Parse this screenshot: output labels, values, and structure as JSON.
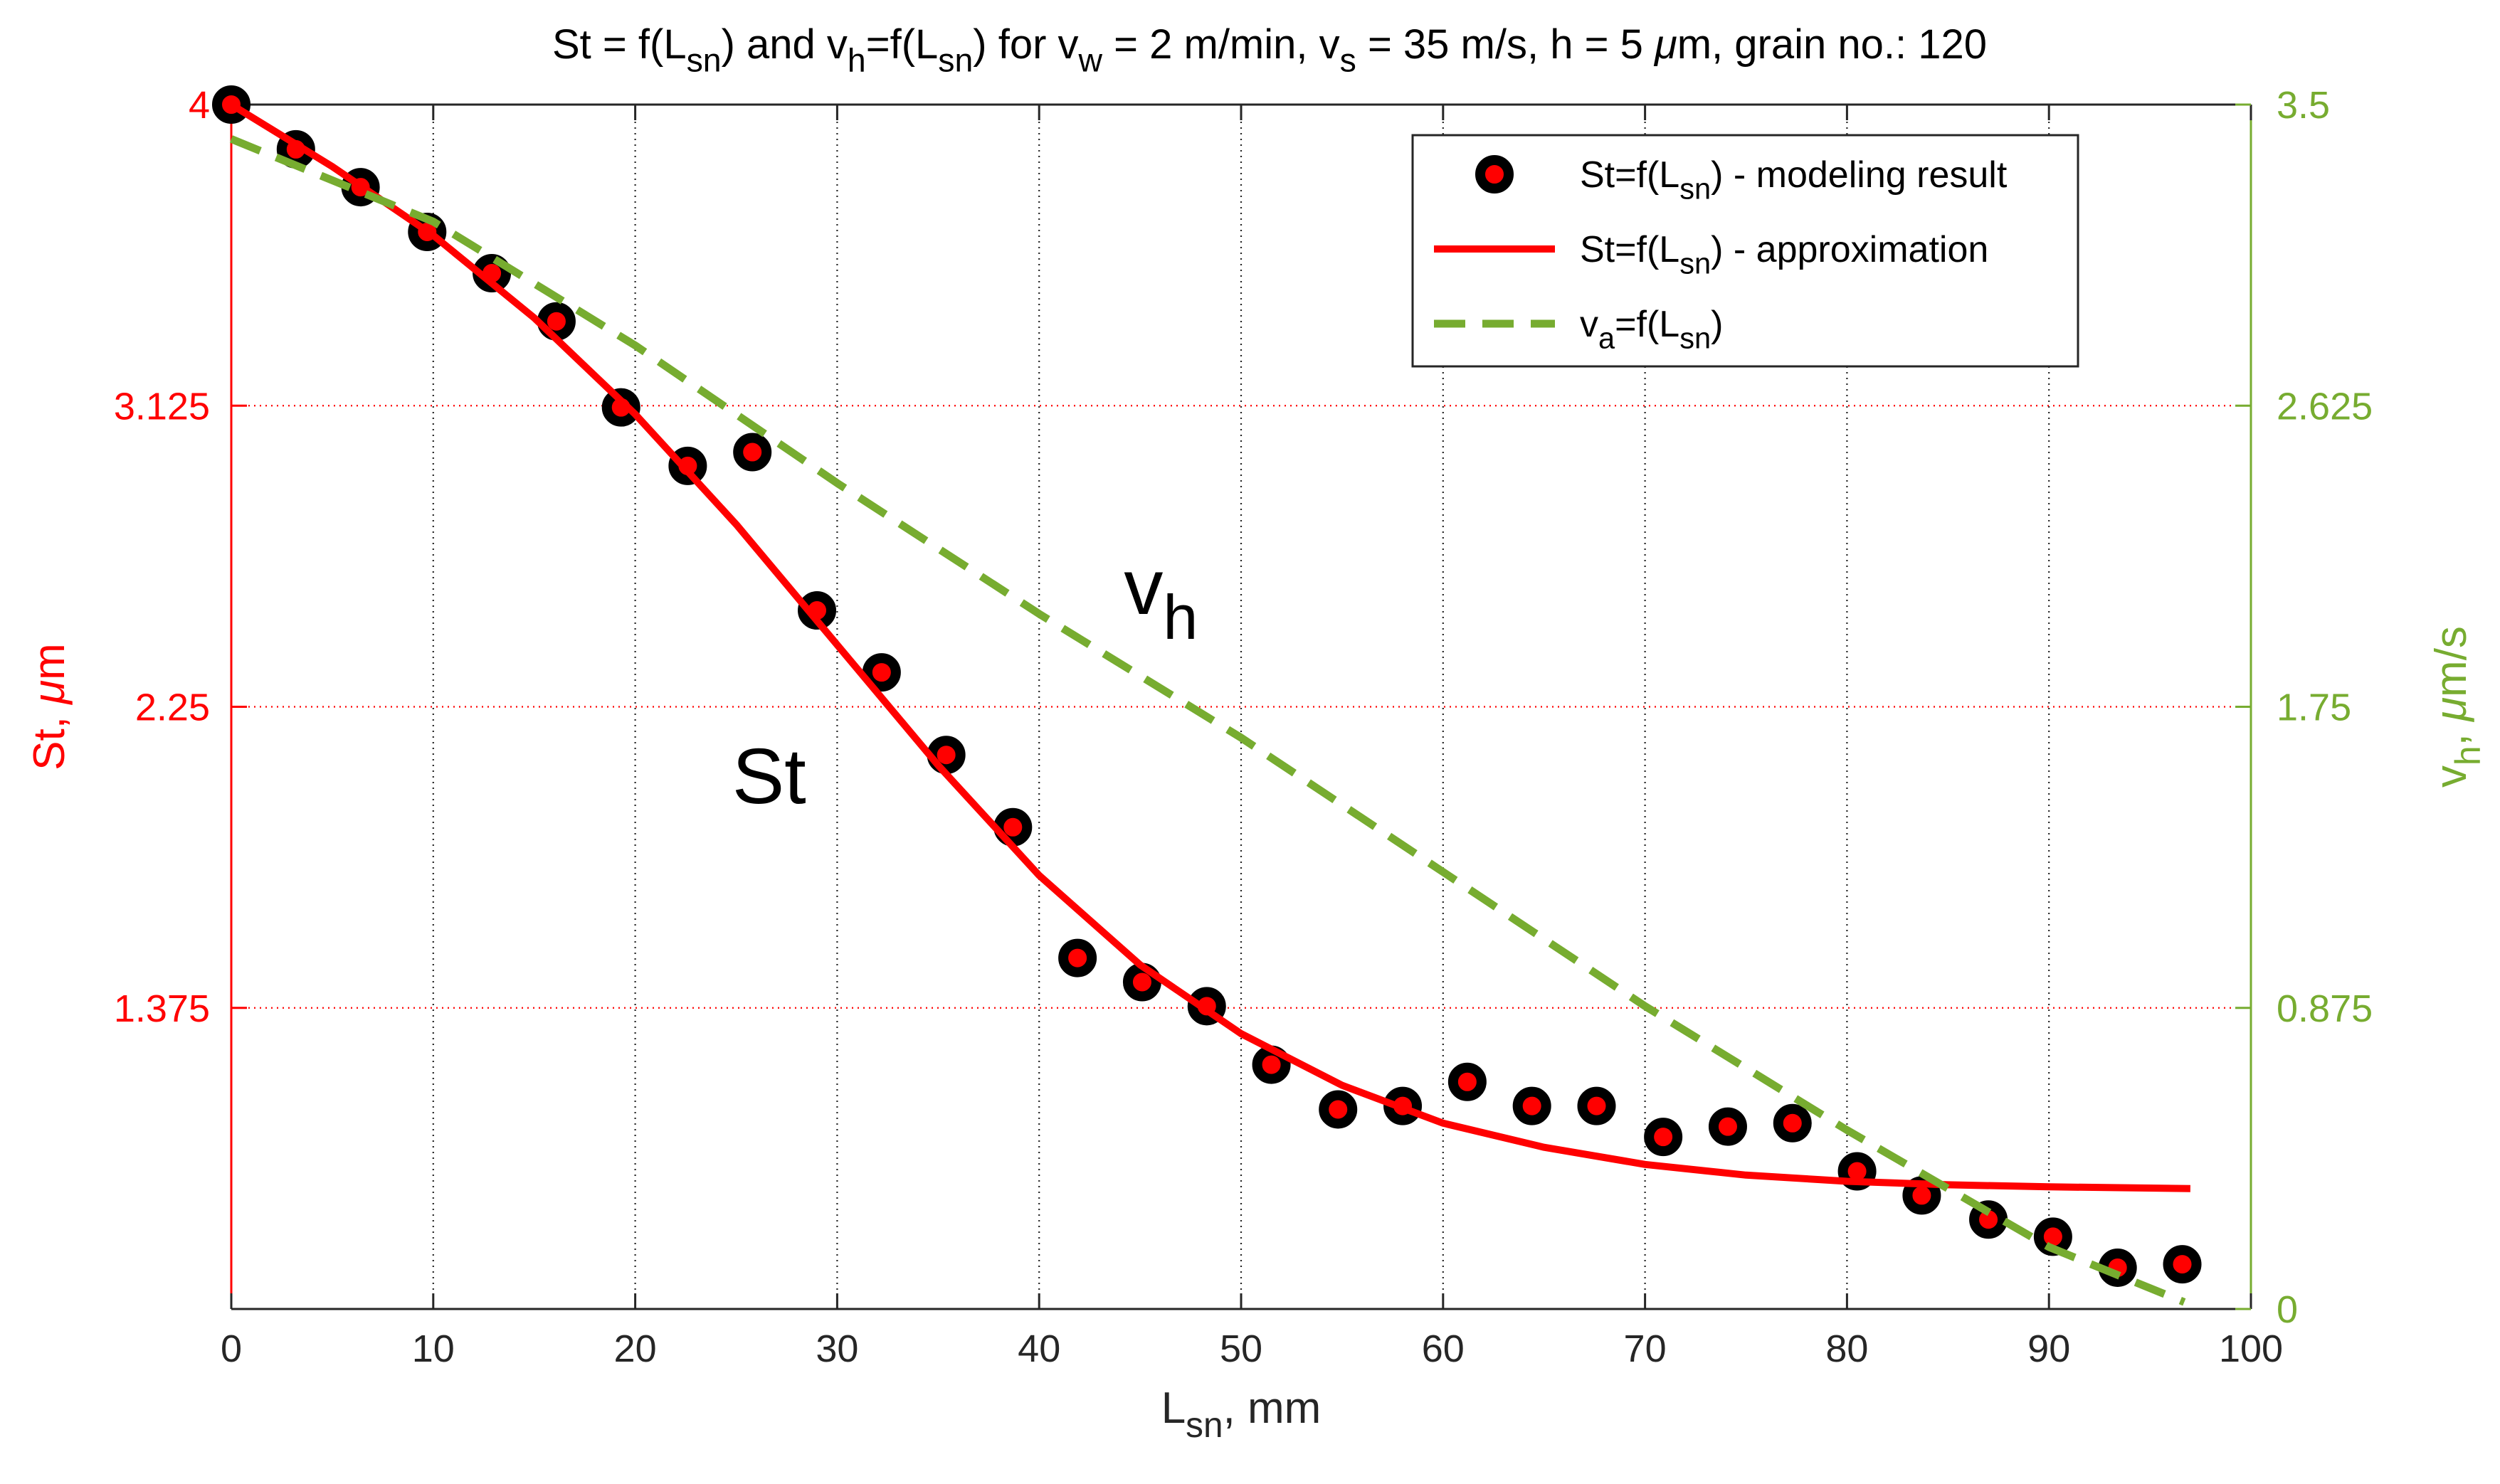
{
  "chart_data": {
    "type": "scatter+line",
    "title": {
      "parts": [
        {
          "t": "St = f(L"
        },
        {
          "t": "sn",
          "sub": true
        },
        {
          "t": ") and v"
        },
        {
          "t": "h",
          "sub": true
        },
        {
          "t": "=f(L"
        },
        {
          "t": "sn",
          "sub": true
        },
        {
          "t": ") for v"
        },
        {
          "t": "w",
          "sub": true
        },
        {
          "t": " = 2 m/min, v"
        },
        {
          "t": "s",
          "sub": true
        },
        {
          "t": " = 35 m/s, h = 5 "
        },
        {
          "t": "μ",
          "italic": true
        },
        {
          "t": "m, grain no.: 120"
        }
      ]
    },
    "x_axis": {
      "label_parts": [
        {
          "t": "L"
        },
        {
          "t": "sn",
          "sub": true
        },
        {
          "t": ", mm"
        }
      ],
      "range": [
        0,
        100
      ],
      "ticks": [
        0,
        10,
        20,
        30,
        40,
        50,
        60,
        70,
        80,
        90,
        100
      ],
      "tick_labels": [
        "0",
        "10",
        "20",
        "30",
        "40",
        "50",
        "60",
        "70",
        "80",
        "90",
        "100"
      ]
    },
    "y_left": {
      "label_parts": [
        {
          "t": "St, "
        },
        {
          "t": "μ",
          "italic": true
        },
        {
          "t": "m"
        }
      ],
      "range": [
        0.5,
        4
      ],
      "ticks": [
        1.375,
        2.25,
        3.125,
        4
      ],
      "tick_labels": [
        "1.375",
        "2.25",
        "3.125",
        "4"
      ],
      "color": "#ff0000"
    },
    "y_right": {
      "label_parts": [
        {
          "t": "v"
        },
        {
          "t": "h",
          "sub": true
        },
        {
          "t": ", "
        },
        {
          "t": "μ",
          "italic": true
        },
        {
          "t": "m/s"
        }
      ],
      "range": [
        0,
        3.5
      ],
      "ticks": [
        0,
        0.875,
        1.75,
        2.625,
        3.5
      ],
      "tick_labels": [
        "0",
        "0.875",
        "1.75",
        "2.625",
        "3.5"
      ],
      "color": "#77ac30"
    },
    "grid": true,
    "series": [
      {
        "name": "St=f(L_sn) - modeling result",
        "kind": "markers",
        "axis": "left",
        "x": [
          0,
          3.2,
          6.4,
          9.7,
          12.9,
          16.1,
          19.3,
          22.6,
          25.8,
          29.0,
          32.2,
          35.4,
          38.7,
          41.9,
          45.1,
          48.3,
          51.5,
          54.8,
          58.0,
          61.2,
          64.4,
          67.6,
          70.9,
          74.1,
          77.3,
          80.5,
          83.7,
          87.0,
          90.2,
          93.4,
          96.6
        ],
        "y": [
          4.0,
          3.87,
          3.76,
          3.63,
          3.51,
          3.37,
          3.12,
          2.95,
          2.99,
          2.53,
          2.35,
          2.11,
          1.9,
          1.52,
          1.45,
          1.38,
          1.21,
          1.08,
          1.09,
          1.16,
          1.09,
          1.09,
          1.0,
          1.03,
          1.04,
          0.9,
          0.83,
          0.76,
          0.71,
          0.62,
          0.63
        ],
        "marker_face": "#ff0000",
        "marker_edge": "#000000"
      },
      {
        "name": "St=f(L_sn) - approximation",
        "kind": "line",
        "axis": "left",
        "x": [
          0,
          5,
          10,
          15,
          20,
          25,
          30,
          35,
          40,
          45,
          50,
          55,
          60,
          65,
          70,
          75,
          80,
          85,
          90,
          97
        ],
        "y": [
          4.0,
          3.82,
          3.62,
          3.38,
          3.1,
          2.78,
          2.43,
          2.08,
          1.76,
          1.5,
          1.3,
          1.15,
          1.04,
          0.97,
          0.92,
          0.889,
          0.871,
          0.861,
          0.855,
          0.85
        ],
        "color": "#ff0000"
      },
      {
        "name": "v_a=f(L_sn)",
        "kind": "dashed-line",
        "axis": "right",
        "x": [
          0,
          10,
          20,
          30,
          40,
          50,
          60,
          70,
          80,
          90,
          96.7
        ],
        "y": [
          3.4,
          3.16,
          2.8,
          2.4,
          2.02,
          1.66,
          1.27,
          0.88,
          0.52,
          0.18,
          0.02
        ],
        "color": "#77ac30"
      }
    ],
    "legend": {
      "position": "top-right",
      "entries": [
        {
          "kind": "marker",
          "parts": [
            {
              "t": "St=f(L"
            },
            {
              "t": "sn",
              "sub": true
            },
            {
              "t": ") - modeling result"
            }
          ]
        },
        {
          "kind": "solid",
          "parts": [
            {
              "t": "St=f(L"
            },
            {
              "t": "sn",
              "sub": true
            },
            {
              "t": ") - approximation"
            }
          ]
        },
        {
          "kind": "dashed",
          "parts": [
            {
              "t": "v"
            },
            {
              "t": "a",
              "sub": true
            },
            {
              "t": "=f(L"
            },
            {
              "t": "sn",
              "sub": true
            },
            {
              "t": ")"
            }
          ]
        }
      ]
    },
    "annotations": [
      {
        "parts": [
          {
            "t": "St"
          }
        ],
        "near": "approximation curve around x=29"
      },
      {
        "parts": [
          {
            "t": "v"
          },
          {
            "t": "h",
            "sub": true
          }
        ],
        "near": "dashed line around x=45"
      }
    ]
  }
}
